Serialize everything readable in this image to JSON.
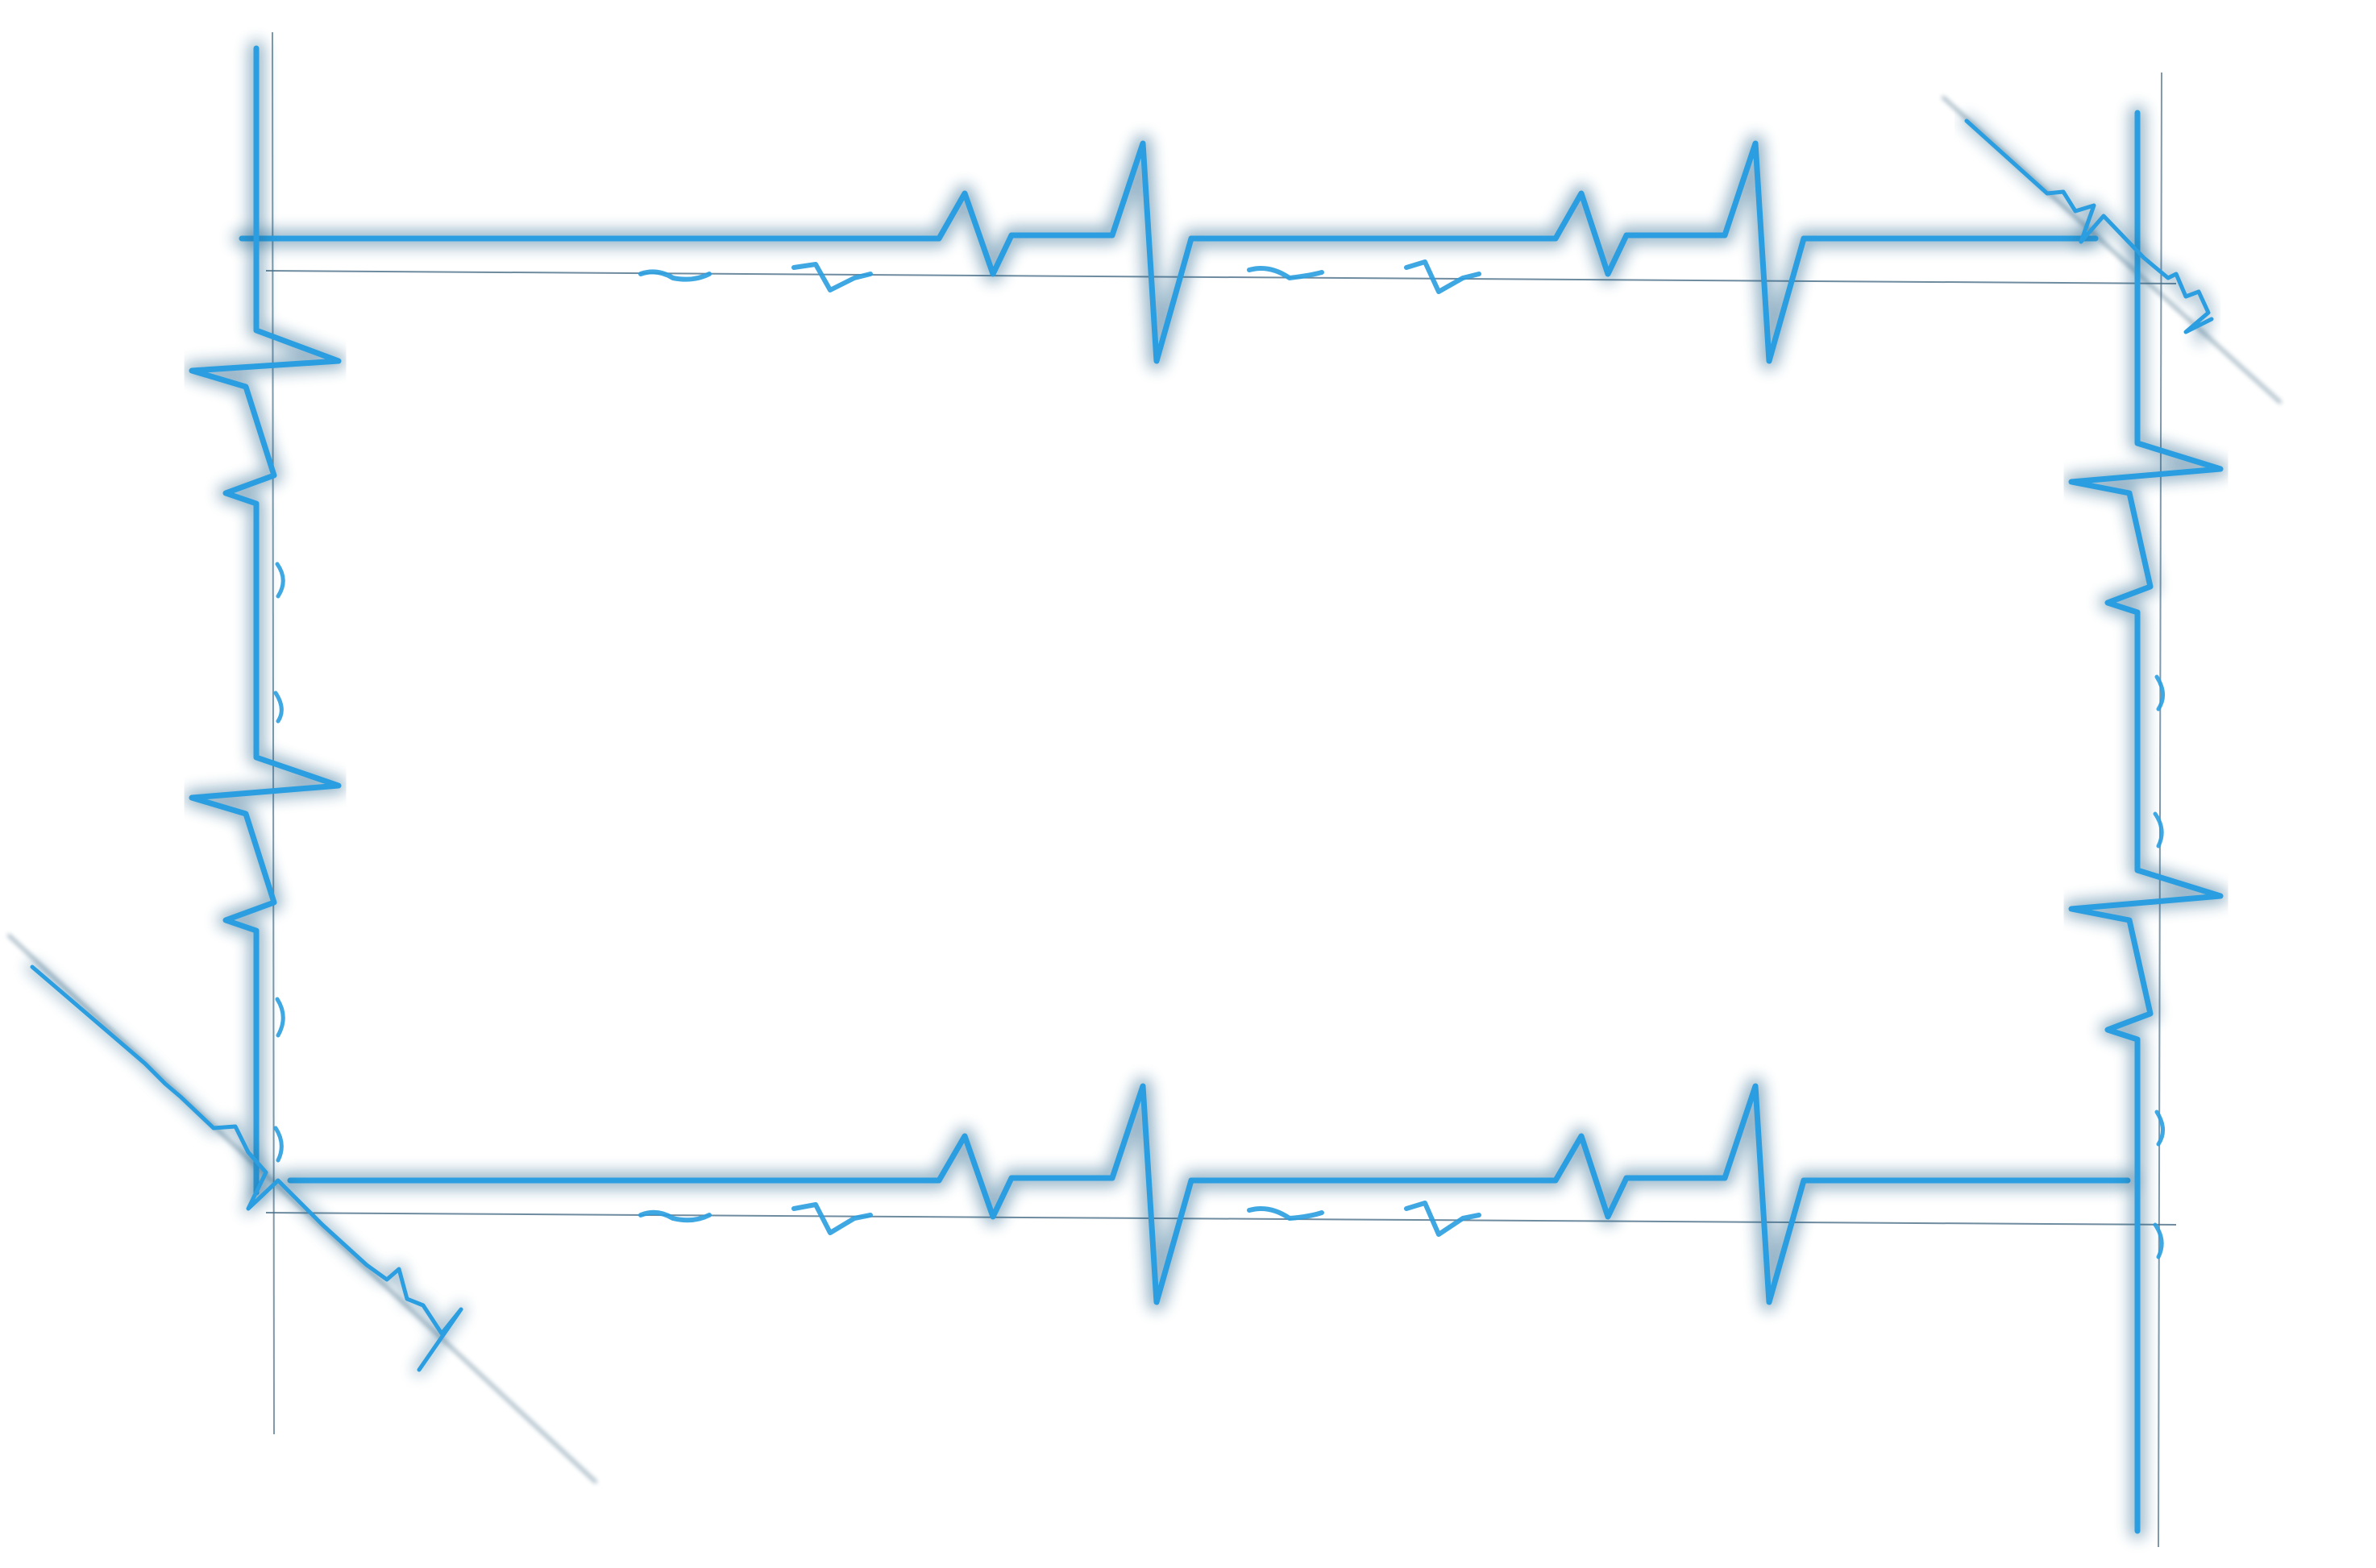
{
  "canvas": {
    "background": "#ffffff"
  },
  "graphic": {
    "subject": "heartbeat-line-frame",
    "colors": {
      "pulse": "#2a9ee0",
      "pulse_dark": "#1f5f88",
      "guide": "#4a6f88",
      "shadow": "#36495a"
    }
  }
}
